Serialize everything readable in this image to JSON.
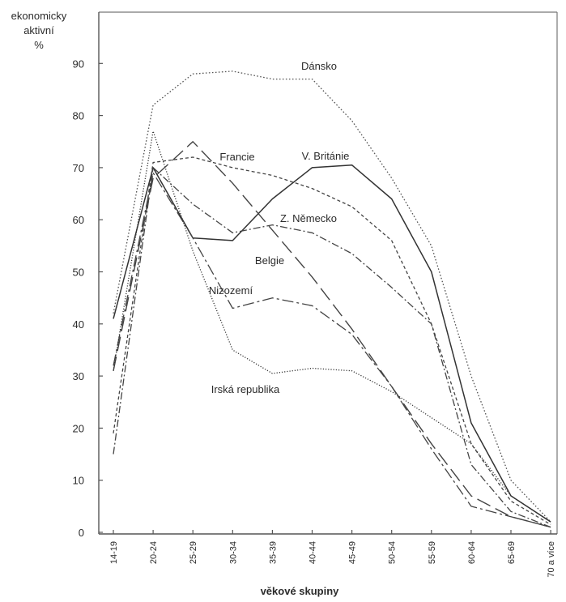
{
  "chart_data": {
    "type": "line",
    "ylabel": [
      "ekonomicky",
      "aktivní",
      "%"
    ],
    "xlabel": "věkové skupiny",
    "ylim": [
      0,
      100
    ],
    "yticks": [
      0,
      10,
      20,
      30,
      40,
      50,
      60,
      70,
      80,
      90
    ],
    "grid": false,
    "categories": [
      "14-19",
      "20-24",
      "25-29",
      "30-34",
      "35-39",
      "40-44",
      "45-49",
      "50-54",
      "55-59",
      "60-64",
      "65-69",
      "70 a více"
    ],
    "series": [
      {
        "name": "Dánsko",
        "values": [
          42,
          82,
          88,
          88.5,
          87,
          87,
          79,
          68,
          55,
          30,
          10,
          2
        ]
      },
      {
        "name": "V. Británie",
        "values": [
          41,
          70,
          56.5,
          56,
          64,
          70,
          70.5,
          64,
          50,
          21,
          7,
          2
        ]
      },
      {
        "name": "Francie",
        "values": [
          31,
          68,
          75,
          67,
          58,
          49,
          39,
          28,
          17,
          7,
          3,
          1
        ]
      },
      {
        "name": "Z. Německo",
        "values": [
          19,
          71,
          72,
          70,
          68.5,
          66,
          62.5,
          56,
          40,
          17,
          6,
          1.5
        ]
      },
      {
        "name": "Belgie",
        "values": [
          15,
          70,
          63,
          57.5,
          59,
          57.5,
          53.5,
          47,
          40,
          13,
          4,
          1
        ]
      },
      {
        "name": "Nizozemí",
        "values": [
          32,
          69,
          56.5,
          43,
          45,
          43.5,
          38,
          28,
          16,
          5,
          3,
          1
        ]
      },
      {
        "name": "Irská republika",
        "values": [
          31,
          77,
          54,
          35,
          30.5,
          31.5,
          31,
          27,
          22,
          17,
          7,
          2
        ]
      }
    ]
  }
}
